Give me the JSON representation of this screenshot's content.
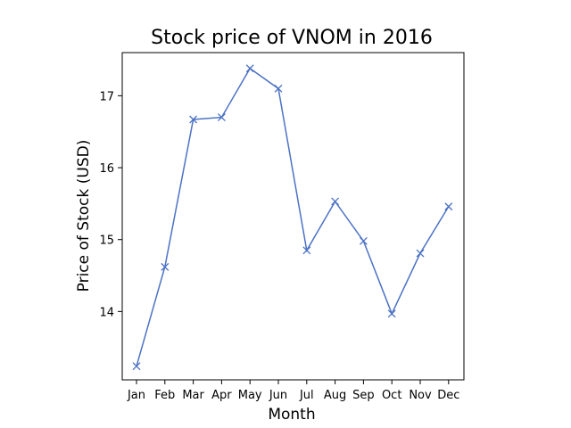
{
  "chart_data": {
    "type": "line",
    "title": "Stock price of VNOM in 2016",
    "xlabel": "Month",
    "ylabel": "Price of Stock (USD)",
    "categories": [
      "Jan",
      "Feb",
      "Mar",
      "Apr",
      "May",
      "Jun",
      "Jul",
      "Aug",
      "Sep",
      "Oct",
      "Nov",
      "Dec"
    ],
    "series": [
      {
        "values": [
          13.24,
          14.62,
          16.67,
          16.7,
          17.38,
          17.1,
          14.85,
          15.53,
          14.98,
          13.97,
          14.81,
          15.46
        ],
        "color": "#4c72c4",
        "marker": "x"
      }
    ],
    "yticks": [
      14,
      15,
      16,
      17
    ],
    "ylim": [
      13.05,
      17.6
    ],
    "grid": false
  }
}
